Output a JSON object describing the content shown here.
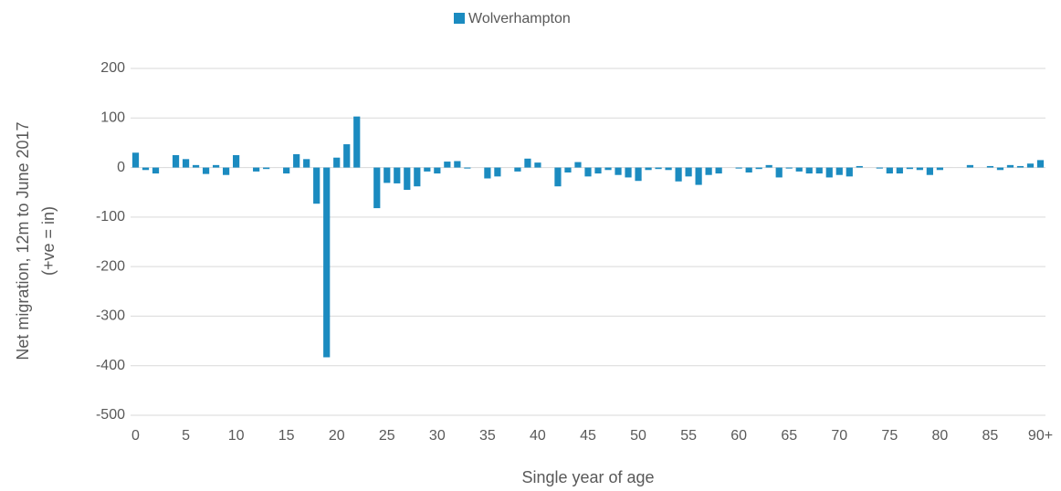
{
  "chart_data": {
    "type": "bar",
    "ylabel": [
      "Net migration, 12m to June 2017",
      "(+ve = in)"
    ],
    "xlabel": "Single year of age",
    "series": [
      {
        "name": "Wolverhampton",
        "color": "#1b8bc0",
        "values": [
          30,
          -5,
          -12,
          0,
          25,
          17,
          5,
          -13,
          5,
          -15,
          25,
          0,
          -8,
          -3,
          0,
          -12,
          27,
          17,
          -73,
          -383,
          20,
          47,
          103,
          0,
          -82,
          -31,
          -32,
          -45,
          -38,
          -8,
          -12,
          12,
          13,
          -2,
          0,
          -22,
          -18,
          0,
          -8,
          18,
          10,
          0,
          -38,
          -10,
          11,
          -18,
          -12,
          -5,
          -15,
          -20,
          -27,
          -5,
          -3,
          -5,
          -28,
          -18,
          -35,
          -15,
          -12,
          0,
          -2,
          -10,
          -3,
          5,
          -20,
          -2,
          -8,
          -12,
          -12,
          -20,
          -15,
          -18,
          3,
          0,
          -2,
          -12,
          -12,
          -3,
          -5,
          -15,
          -5,
          0,
          0,
          5,
          0,
          3,
          -5,
          5,
          3,
          8,
          15
        ]
      }
    ],
    "categories": [
      "0",
      null,
      null,
      null,
      null,
      "5",
      null,
      null,
      null,
      null,
      "10",
      null,
      null,
      null,
      null,
      "15",
      null,
      null,
      null,
      null,
      "20",
      null,
      null,
      null,
      null,
      "25",
      null,
      null,
      null,
      null,
      "30",
      null,
      null,
      null,
      null,
      "35",
      null,
      null,
      null,
      null,
      "40",
      null,
      null,
      null,
      null,
      "45",
      null,
      null,
      null,
      null,
      "50",
      null,
      null,
      null,
      null,
      "55",
      null,
      null,
      null,
      null,
      "60",
      null,
      null,
      null,
      null,
      "65",
      null,
      null,
      null,
      null,
      "70",
      null,
      null,
      null,
      null,
      "75",
      null,
      null,
      null,
      null,
      "80",
      null,
      null,
      null,
      null,
      "85",
      null,
      null,
      null,
      null,
      "90+"
    ],
    "ylim": [
      -500,
      200
    ],
    "yticks": [
      -500,
      -400,
      -300,
      -200,
      -100,
      0,
      100,
      200
    ],
    "grid": true,
    "legend": "top"
  }
}
